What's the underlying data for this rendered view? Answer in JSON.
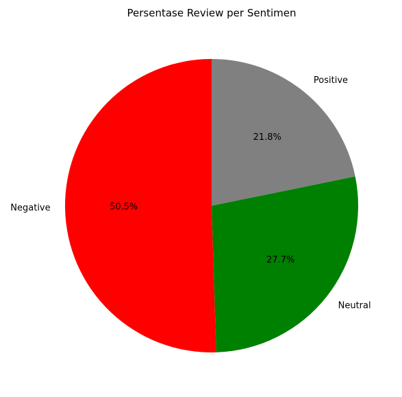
{
  "chart_data": {
    "type": "pie",
    "title": "Persentase Review per Sentimen",
    "categories": [
      "Negative",
      "Neutral",
      "Positive"
    ],
    "values": [
      50.5,
      27.7,
      21.8
    ],
    "percent_labels": [
      "50.5%",
      "27.7%",
      "21.8%"
    ],
    "colors": [
      "#ff0000",
      "#008000",
      "#808080"
    ],
    "start_angle_deg": 90,
    "direction": "counterclockwise",
    "legend": "none"
  }
}
